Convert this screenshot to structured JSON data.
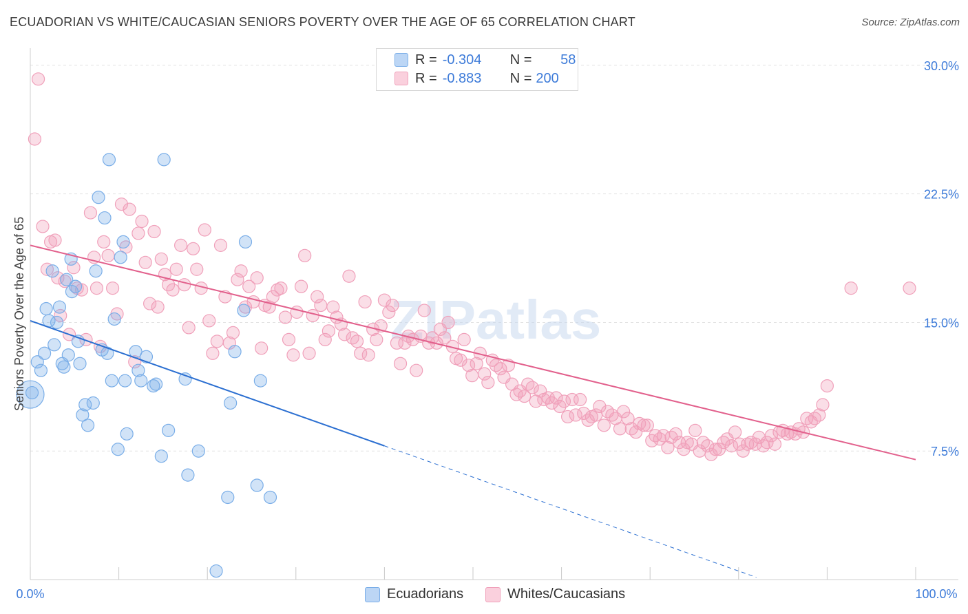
{
  "title": "ECUADORIAN VS WHITE/CAUCASIAN SENIORS POVERTY OVER THE AGE OF 65 CORRELATION CHART",
  "source": "Source: ZipAtlas.com",
  "watermark": "ZIPatlas",
  "legend": {
    "row1": {
      "r_label": "R =",
      "r_value": "-0.304",
      "n_label": "N =",
      "n_value": "58"
    },
    "row2": {
      "r_label": "R =",
      "r_value": "-0.883",
      "n_label": "N =",
      "n_value": "200"
    }
  },
  "bottom_legend": {
    "blue": "Ecuadorians",
    "pink": "Whites/Caucasians"
  },
  "colors": {
    "blue": "#7aaee8",
    "blue_line": "#2b6fd1",
    "pink": "#f0a0ba",
    "pink_line": "#e2608c",
    "axis_text": "#3d7bd9"
  },
  "chart_data": {
    "type": "scatter",
    "title": "ECUADORIAN VS WHITE/CAUCASIAN SENIORS POVERTY OVER THE AGE OF 65 CORRELATION CHART",
    "xlabel": "",
    "ylabel": "Seniors Poverty Over the Age of 65",
    "xlim": [
      0,
      100
    ],
    "ylim": [
      0,
      31
    ],
    "x_tick_labels": [
      "0.0%",
      "100.0%"
    ],
    "y_ticks": [
      7.5,
      15.0,
      22.5,
      30.0
    ],
    "y_tick_labels": [
      "7.5%",
      "15.0%",
      "22.5%",
      "30.0%"
    ],
    "grid": true,
    "legend_position": "top-center",
    "series": [
      {
        "name": "Ecuadorians",
        "r": -0.304,
        "n": 58,
        "trend": {
          "x0": 0,
          "y0": 15.1,
          "x1": 40,
          "y1": 7.8,
          "dashed_to_x": 82
        },
        "points": [
          [
            0,
            10.8
          ],
          [
            0.2,
            10.9
          ],
          [
            0.8,
            12.7
          ],
          [
            1.2,
            12.2
          ],
          [
            1.6,
            13.2
          ],
          [
            1.8,
            15.8
          ],
          [
            2.1,
            15.1
          ],
          [
            2.5,
            18.0
          ],
          [
            2.7,
            13.7
          ],
          [
            3.0,
            15.0
          ],
          [
            3.3,
            15.9
          ],
          [
            3.6,
            12.6
          ],
          [
            3.8,
            12.4
          ],
          [
            4.1,
            17.5
          ],
          [
            4.3,
            13.1
          ],
          [
            4.6,
            18.7
          ],
          [
            4.7,
            16.8
          ],
          [
            5.1,
            17.1
          ],
          [
            5.4,
            13.9
          ],
          [
            5.6,
            12.6
          ],
          [
            5.9,
            9.6
          ],
          [
            6.2,
            10.2
          ],
          [
            6.5,
            9.0
          ],
          [
            7.1,
            10.3
          ],
          [
            7.4,
            18.0
          ],
          [
            7.7,
            22.3
          ],
          [
            8.1,
            13.4
          ],
          [
            8.4,
            21.1
          ],
          [
            8.7,
            13.2
          ],
          [
            8.9,
            24.5
          ],
          [
            9.2,
            11.6
          ],
          [
            9.5,
            15.2
          ],
          [
            9.9,
            7.6
          ],
          [
            10.2,
            18.8
          ],
          [
            10.5,
            19.7
          ],
          [
            10.7,
            11.6
          ],
          [
            10.9,
            8.5
          ],
          [
            11.9,
            13.3
          ],
          [
            12.2,
            12.2
          ],
          [
            12.5,
            11.6
          ],
          [
            13.1,
            13.0
          ],
          [
            13.9,
            11.3
          ],
          [
            14.2,
            11.4
          ],
          [
            14.8,
            7.2
          ],
          [
            15.1,
            24.5
          ],
          [
            15.6,
            8.7
          ],
          [
            17.5,
            11.7
          ],
          [
            17.8,
            6.1
          ],
          [
            19.0,
            7.5
          ],
          [
            21.0,
            0.5
          ],
          [
            22.3,
            4.8
          ],
          [
            22.6,
            10.3
          ],
          [
            23.1,
            13.3
          ],
          [
            24.1,
            15.7
          ],
          [
            24.3,
            19.7
          ],
          [
            25.6,
            5.5
          ],
          [
            26.0,
            11.6
          ],
          [
            27.1,
            4.8
          ]
        ]
      },
      {
        "name": "Whites/Caucasians",
        "r": -0.883,
        "n": 200,
        "trend": {
          "x0": 0,
          "y0": 19.5,
          "x1": 100,
          "y1": 7.0
        },
        "points": [
          [
            0.5,
            25.7
          ],
          [
            0.9,
            29.2
          ],
          [
            1.4,
            20.6
          ],
          [
            1.9,
            18.1
          ],
          [
            2.3,
            19.7
          ],
          [
            2.8,
            19.8
          ],
          [
            3.1,
            17.6
          ],
          [
            3.4,
            15.4
          ],
          [
            3.9,
            17.4
          ],
          [
            4.4,
            14.3
          ],
          [
            4.9,
            18.2
          ],
          [
            5.3,
            17.0
          ],
          [
            5.8,
            16.9
          ],
          [
            6.3,
            14.0
          ],
          [
            6.8,
            21.4
          ],
          [
            7.2,
            18.8
          ],
          [
            7.5,
            17.0
          ],
          [
            7.9,
            13.6
          ],
          [
            8.3,
            19.7
          ],
          [
            8.8,
            18.9
          ],
          [
            9.3,
            17.0
          ],
          [
            9.8,
            15.5
          ],
          [
            10.3,
            21.9
          ],
          [
            10.8,
            19.4
          ],
          [
            11.2,
            21.6
          ],
          [
            11.8,
            12.7
          ],
          [
            12.2,
            20.2
          ],
          [
            12.6,
            20.9
          ],
          [
            13.0,
            18.5
          ],
          [
            13.5,
            16.1
          ],
          [
            14.0,
            20.3
          ],
          [
            14.4,
            15.9
          ],
          [
            14.8,
            18.7
          ],
          [
            15.2,
            17.8
          ],
          [
            15.6,
            17.2
          ],
          [
            16.1,
            16.9
          ],
          [
            16.5,
            18.1
          ],
          [
            17.0,
            19.5
          ],
          [
            17.4,
            17.2
          ],
          [
            17.9,
            14.7
          ],
          [
            18.4,
            19.3
          ],
          [
            18.8,
            18.1
          ],
          [
            19.3,
            17.0
          ],
          [
            19.7,
            20.4
          ],
          [
            20.2,
            15.1
          ],
          [
            20.6,
            13.2
          ],
          [
            21.1,
            13.9
          ],
          [
            21.5,
            19.5
          ],
          [
            22.0,
            16.5
          ],
          [
            22.5,
            13.8
          ],
          [
            22.9,
            14.4
          ],
          [
            23.4,
            17.5
          ],
          [
            23.8,
            18.0
          ],
          [
            24.3,
            15.9
          ],
          [
            24.7,
            17.1
          ],
          [
            25.2,
            16.2
          ],
          [
            25.6,
            17.6
          ],
          [
            26.1,
            13.5
          ],
          [
            26.5,
            16.0
          ],
          [
            27.0,
            15.9
          ],
          [
            27.4,
            16.5
          ],
          [
            27.9,
            16.9
          ],
          [
            28.3,
            17.0
          ],
          [
            28.8,
            15.3
          ],
          [
            29.2,
            14.0
          ],
          [
            29.7,
            13.1
          ],
          [
            30.1,
            15.6
          ],
          [
            30.6,
            17.1
          ],
          [
            31.0,
            18.9
          ],
          [
            31.5,
            13.2
          ],
          [
            31.9,
            15.4
          ],
          [
            32.4,
            16.5
          ],
          [
            32.8,
            16.0
          ],
          [
            33.3,
            14.0
          ],
          [
            33.7,
            14.5
          ],
          [
            34.2,
            15.9
          ],
          [
            34.6,
            15.3
          ],
          [
            35.1,
            14.9
          ],
          [
            35.5,
            14.3
          ],
          [
            36.0,
            17.7
          ],
          [
            36.4,
            14.1
          ],
          [
            36.9,
            13.9
          ],
          [
            37.3,
            13.2
          ],
          [
            37.8,
            16.2
          ],
          [
            38.2,
            13.1
          ],
          [
            38.7,
            14.6
          ],
          [
            39.1,
            14.0
          ],
          [
            39.6,
            14.8
          ],
          [
            40.0,
            16.3
          ],
          [
            40.5,
            15.6
          ],
          [
            40.9,
            16.0
          ],
          [
            41.4,
            13.8
          ],
          [
            41.8,
            12.6
          ],
          [
            42.3,
            13.8
          ],
          [
            42.7,
            14.2
          ],
          [
            43.2,
            14.0
          ],
          [
            43.6,
            12.2
          ],
          [
            44.1,
            14.2
          ],
          [
            44.5,
            15.7
          ],
          [
            45.0,
            13.8
          ],
          [
            45.4,
            14.1
          ],
          [
            45.9,
            13.8
          ],
          [
            46.3,
            14.6
          ],
          [
            46.8,
            14.1
          ],
          [
            47.2,
            15.0
          ],
          [
            47.7,
            13.6
          ],
          [
            48.1,
            12.9
          ],
          [
            48.6,
            12.8
          ],
          [
            49.0,
            14.0
          ],
          [
            49.5,
            12.5
          ],
          [
            49.9,
            11.9
          ],
          [
            50.4,
            12.6
          ],
          [
            50.8,
            13.2
          ],
          [
            51.3,
            12.0
          ],
          [
            51.7,
            11.5
          ],
          [
            52.2,
            12.8
          ],
          [
            52.6,
            12.5
          ],
          [
            53.1,
            12.3
          ],
          [
            53.5,
            11.8
          ],
          [
            54.0,
            12.5
          ],
          [
            54.4,
            11.4
          ],
          [
            54.9,
            10.8
          ],
          [
            55.3,
            11.0
          ],
          [
            55.8,
            10.7
          ],
          [
            56.2,
            11.4
          ],
          [
            56.7,
            11.2
          ],
          [
            57.1,
            10.4
          ],
          [
            57.6,
            11.0
          ],
          [
            58.0,
            10.5
          ],
          [
            58.5,
            10.6
          ],
          [
            58.9,
            10.3
          ],
          [
            59.4,
            10.6
          ],
          [
            59.8,
            10.1
          ],
          [
            60.3,
            10.4
          ],
          [
            60.7,
            9.5
          ],
          [
            61.2,
            10.5
          ],
          [
            61.6,
            9.6
          ],
          [
            62.1,
            10.5
          ],
          [
            62.5,
            9.7
          ],
          [
            63.0,
            9.3
          ],
          [
            63.4,
            9.5
          ],
          [
            63.9,
            9.6
          ],
          [
            64.3,
            10.1
          ],
          [
            64.8,
            9.0
          ],
          [
            65.2,
            9.8
          ],
          [
            65.7,
            9.6
          ],
          [
            66.1,
            9.4
          ],
          [
            66.6,
            8.8
          ],
          [
            67.0,
            9.8
          ],
          [
            67.5,
            9.4
          ],
          [
            67.9,
            8.8
          ],
          [
            68.4,
            8.6
          ],
          [
            68.8,
            9.1
          ],
          [
            69.3,
            9.0
          ],
          [
            69.7,
            9.0
          ],
          [
            70.2,
            8.1
          ],
          [
            70.6,
            8.4
          ],
          [
            71.1,
            8.2
          ],
          [
            71.5,
            8.4
          ],
          [
            72.0,
            7.7
          ],
          [
            72.4,
            8.3
          ],
          [
            72.9,
            8.5
          ],
          [
            73.3,
            8.0
          ],
          [
            73.8,
            7.6
          ],
          [
            74.2,
            8.0
          ],
          [
            74.7,
            7.9
          ],
          [
            75.1,
            8.7
          ],
          [
            75.6,
            7.5
          ],
          [
            76.0,
            8.0
          ],
          [
            76.5,
            7.8
          ],
          [
            76.9,
            7.3
          ],
          [
            77.4,
            7.6
          ],
          [
            77.8,
            7.6
          ],
          [
            78.3,
            8.0
          ],
          [
            78.7,
            8.2
          ],
          [
            79.2,
            7.8
          ],
          [
            79.6,
            8.6
          ],
          [
            80.1,
            7.9
          ],
          [
            80.5,
            7.5
          ],
          [
            81.0,
            7.9
          ],
          [
            81.4,
            8.0
          ],
          [
            81.9,
            7.9
          ],
          [
            82.3,
            8.3
          ],
          [
            82.8,
            7.8
          ],
          [
            83.2,
            8.0
          ],
          [
            83.7,
            8.4
          ],
          [
            84.1,
            7.9
          ],
          [
            84.6,
            8.6
          ],
          [
            85.0,
            8.7
          ],
          [
            85.5,
            8.5
          ],
          [
            85.9,
            8.6
          ],
          [
            86.4,
            8.5
          ],
          [
            86.8,
            8.8
          ],
          [
            87.3,
            8.6
          ],
          [
            87.7,
            9.4
          ],
          [
            88.2,
            9.2
          ],
          [
            88.6,
            9.4
          ],
          [
            89.1,
            9.6
          ],
          [
            89.5,
            10.2
          ],
          [
            90.0,
            11.3
          ],
          [
            92.7,
            17.0
          ],
          [
            99.3,
            17.0
          ]
        ]
      }
    ]
  }
}
